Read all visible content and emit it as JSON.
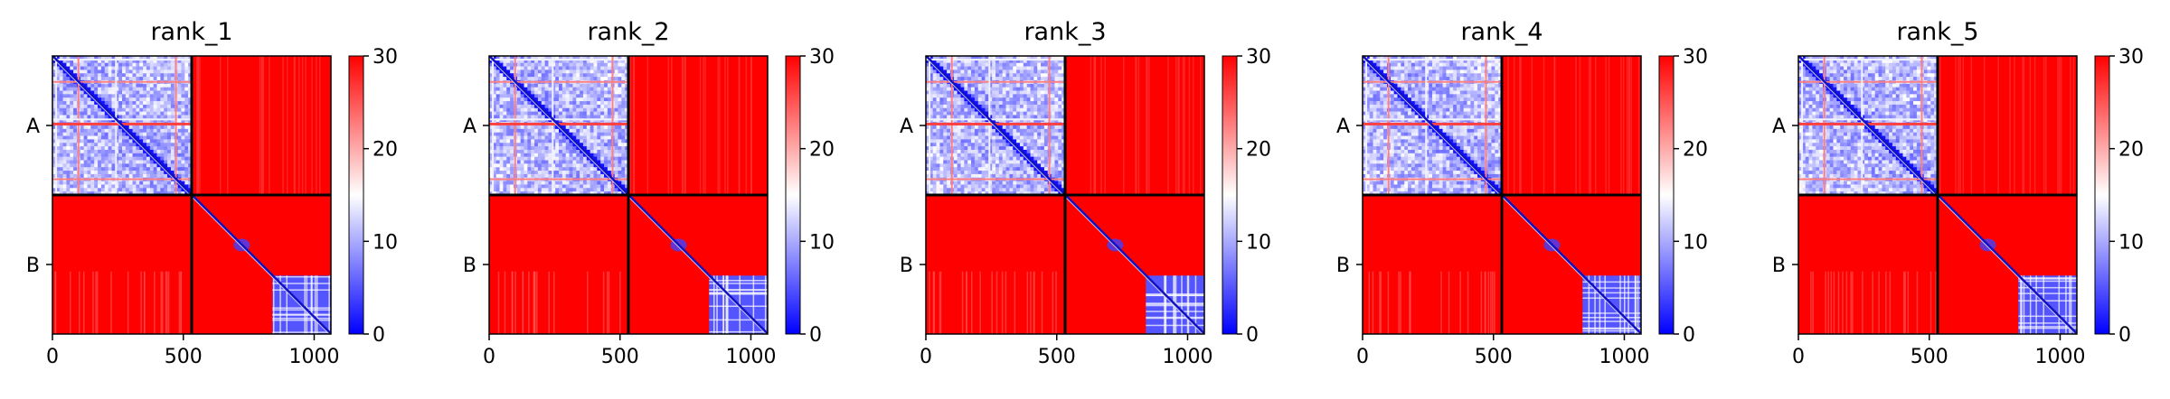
{
  "chart_data": [
    {
      "type": "heatmap",
      "title": "rank_1",
      "xticks": [
        0,
        500,
        1000
      ],
      "yticklabels": [
        "A",
        "B"
      ],
      "xlim": [
        0,
        1064
      ],
      "chain_boundary": 532,
      "colorbar": {
        "min": 0,
        "max": 30,
        "ticks": [
          0,
          10,
          20,
          30
        ]
      }
    },
    {
      "type": "heatmap",
      "title": "rank_2",
      "xticks": [
        0,
        500,
        1000
      ],
      "yticklabels": [
        "A",
        "B"
      ],
      "xlim": [
        0,
        1064
      ],
      "chain_boundary": 532,
      "colorbar": {
        "min": 0,
        "max": 30,
        "ticks": [
          0,
          10,
          20,
          30
        ]
      }
    },
    {
      "type": "heatmap",
      "title": "rank_3",
      "xticks": [
        0,
        500,
        1000
      ],
      "yticklabels": [
        "A",
        "B"
      ],
      "xlim": [
        0,
        1064
      ],
      "chain_boundary": 532,
      "colorbar": {
        "min": 0,
        "max": 30,
        "ticks": [
          0,
          10,
          20,
          30
        ]
      }
    },
    {
      "type": "heatmap",
      "title": "rank_4",
      "xticks": [
        0,
        500,
        1000
      ],
      "yticklabels": [
        "A",
        "B"
      ],
      "xlim": [
        0,
        1064
      ],
      "chain_boundary": 532,
      "colorbar": {
        "min": 0,
        "max": 30,
        "ticks": [
          0,
          10,
          20,
          30
        ]
      }
    },
    {
      "type": "heatmap",
      "title": "rank_5",
      "xticks": [
        0,
        500,
        1000
      ],
      "yticklabels": [
        "A",
        "B"
      ],
      "xlim": [
        0,
        1064
      ],
      "chain_boundary": 532,
      "colorbar": {
        "min": 0,
        "max": 30,
        "ticks": [
          0,
          10,
          20,
          30
        ]
      }
    }
  ],
  "colors": {
    "low": "#0000ff",
    "mid": "#ffffff",
    "high": "#ff0000",
    "divider": "#000000"
  }
}
